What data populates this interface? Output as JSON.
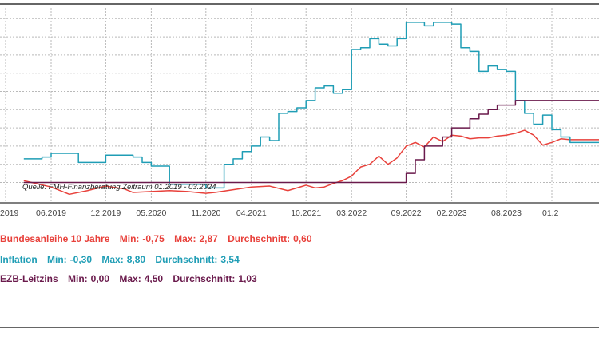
{
  "chart_data": {
    "type": "line",
    "title": "",
    "xlabel": "",
    "ylabel": "",
    "x_range": [
      "2019-03",
      "2024-03"
    ],
    "y_range": [
      -0.75,
      9.8
    ],
    "grid": true,
    "x_tick_labels": [
      {
        "date": "2019-01",
        "label": "2019"
      },
      {
        "date": "2019-06",
        "label": "06.2019"
      },
      {
        "date": "2019-12",
        "label": "12.2019"
      },
      {
        "date": "2020-05",
        "label": "05.2020"
      },
      {
        "date": "2020-11",
        "label": "11.2020"
      },
      {
        "date": "2021-04",
        "label": "04.2021"
      },
      {
        "date": "2021-10",
        "label": "10.2021"
      },
      {
        "date": "2022-03",
        "label": "03.2022"
      },
      {
        "date": "2022-09",
        "label": "09.2022"
      },
      {
        "date": "2023-02",
        "label": "02.2023"
      },
      {
        "date": "2023-08",
        "label": "08.2023"
      },
      {
        "date": "2024-01",
        "label": "01.2"
      }
    ],
    "annotation": "Quelle: FMH-Finanzberatung     Zeitraum 01.2019 - 03.2024",
    "series": [
      {
        "name": "Bundesanleihe 10 Jahre",
        "color": "#e8413b",
        "x": [
          "2019-03",
          "2019-06",
          "2019-08",
          "2019-10",
          "2019-12",
          "2020-02",
          "2020-03",
          "2020-05",
          "2020-07",
          "2020-09",
          "2020-11",
          "2020-12",
          "2021-02",
          "2021-04",
          "2021-06",
          "2021-08",
          "2021-10",
          "2021-11",
          "2021-12",
          "2022-01",
          "2022-02",
          "2022-03",
          "2022-04",
          "2022-05",
          "2022-06",
          "2022-07",
          "2022-08",
          "2022-09",
          "2022-10",
          "2022-11",
          "2022-12",
          "2023-01",
          "2023-02",
          "2023-03",
          "2023-04",
          "2023-05",
          "2023-06",
          "2023-07",
          "2023-08",
          "2023-09",
          "2023-10",
          "2023-11",
          "2023-12",
          "2024-01",
          "2024-02",
          "2024-03"
        ],
        "values": [
          0.1,
          -0.25,
          -0.65,
          -0.45,
          -0.2,
          -0.35,
          -0.55,
          -0.5,
          -0.45,
          -0.5,
          -0.6,
          -0.55,
          -0.4,
          -0.25,
          -0.2,
          -0.45,
          -0.15,
          -0.3,
          -0.25,
          -0.05,
          0.1,
          0.35,
          0.85,
          1.0,
          1.45,
          1.0,
          1.35,
          2.0,
          2.2,
          1.95,
          2.5,
          2.25,
          2.6,
          2.55,
          2.4,
          2.45,
          2.45,
          2.55,
          2.6,
          2.7,
          2.87,
          2.6,
          2.05,
          2.2,
          2.4,
          2.35
        ]
      },
      {
        "name": "Inflation",
        "color": "#1f9db5",
        "x": [
          "2019-03",
          "2019-04",
          "2019-05",
          "2019-06",
          "2019-07",
          "2019-09",
          "2019-11",
          "2019-12",
          "2020-02",
          "2020-03",
          "2020-04",
          "2020-05",
          "2020-06",
          "2020-07",
          "2020-11",
          "2020-12",
          "2021-01",
          "2021-02",
          "2021-03",
          "2021-04",
          "2021-05",
          "2021-06",
          "2021-07",
          "2021-08",
          "2021-09",
          "2021-10",
          "2021-11",
          "2021-12",
          "2022-01",
          "2022-02",
          "2022-03",
          "2022-04",
          "2022-05",
          "2022-06",
          "2022-07",
          "2022-08",
          "2022-09",
          "2022-10",
          "2022-11",
          "2022-12",
          "2023-01",
          "2023-02",
          "2023-03",
          "2023-04",
          "2023-05",
          "2023-06",
          "2023-07",
          "2023-08",
          "2023-09",
          "2023-10",
          "2023-11",
          "2023-12",
          "2024-01",
          "2024-02",
          "2024-03"
        ],
        "values": [
          1.3,
          1.3,
          1.4,
          1.6,
          1.6,
          1.1,
          1.1,
          1.5,
          1.5,
          1.4,
          1.1,
          0.9,
          0.9,
          -0.1,
          -0.3,
          -0.3,
          1.0,
          1.3,
          1.7,
          2.0,
          2.5,
          2.3,
          3.8,
          3.9,
          4.1,
          4.5,
          5.2,
          5.3,
          4.9,
          5.1,
          7.3,
          7.4,
          7.9,
          7.6,
          7.5,
          7.9,
          8.8,
          8.8,
          8.6,
          8.8,
          8.8,
          8.7,
          7.4,
          7.2,
          6.1,
          6.4,
          6.2,
          6.1,
          4.5,
          3.8,
          3.2,
          3.7,
          2.9,
          2.5,
          2.2
        ]
      },
      {
        "name": "EZB-Leitzins",
        "color": "#6a1a4c",
        "x": [
          "2019-03",
          "2022-07",
          "2022-09",
          "2022-10",
          "2022-11",
          "2022-12",
          "2023-01",
          "2023-02",
          "2023-03",
          "2023-04",
          "2023-05",
          "2023-06",
          "2023-07",
          "2023-08",
          "2023-09",
          "2023-10",
          "2024-03"
        ],
        "values": [
          0.0,
          0.0,
          0.5,
          1.25,
          2.0,
          2.0,
          2.5,
          3.0,
          3.0,
          3.5,
          3.75,
          4.0,
          4.25,
          4.25,
          4.5,
          4.5,
          4.5
        ]
      }
    ]
  },
  "legend": [
    {
      "name": "Bundesanleihe 10 Jahre",
      "min_label": "Min:",
      "min": "-0,75",
      "max_label": "Max:",
      "max": "2,87",
      "avg_label": "Durchschnitt:",
      "avg": "0,60",
      "color": "#e8413b"
    },
    {
      "name": "Inflation",
      "min_label": "Min:",
      "min": "-0,30",
      "max_label": "Max:",
      "max": "8,80",
      "avg_label": "Durchschnitt:",
      "avg": "3,54",
      "color": "#1f9db5"
    },
    {
      "name": "EZB-Leitzins",
      "min_label": "Min:",
      "min": "0,00",
      "max_label": "Max:",
      "max": "4,50",
      "avg_label": "Durchschnitt:",
      "avg": "1,03",
      "color": "#6a1a4c"
    }
  ]
}
